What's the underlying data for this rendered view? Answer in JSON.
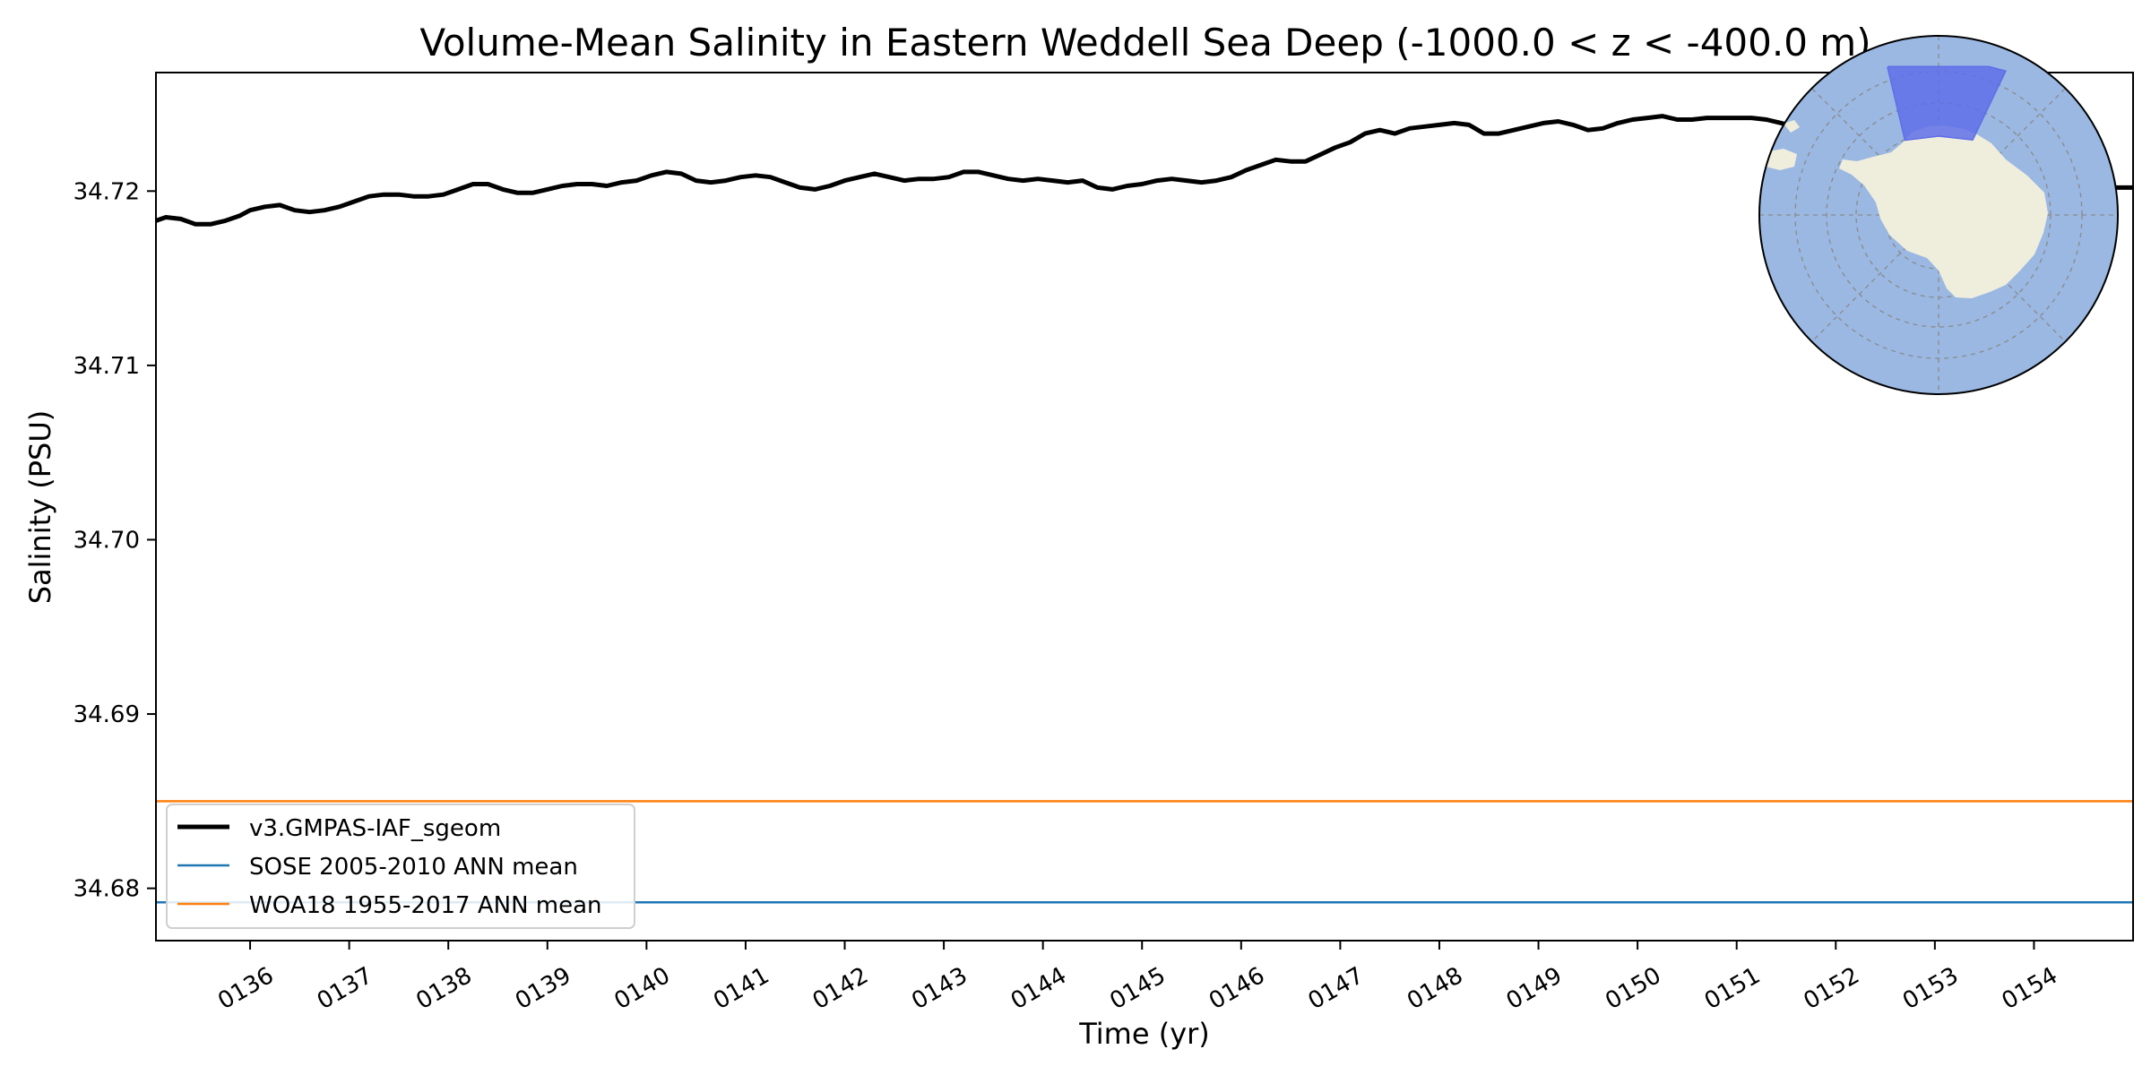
{
  "chart_data": {
    "type": "line",
    "title": "Volume-Mean Salinity in Eastern Weddell Sea Deep (-1000.0 < z < -400.0 m)",
    "xlabel": "Time (yr)",
    "ylabel": "Salinity (PSU)",
    "xlim": [
      135.05,
      155.0
    ],
    "ylim": [
      34.677,
      34.7268
    ],
    "x_ticks": [
      "0136",
      "0137",
      "0138",
      "0139",
      "0140",
      "0141",
      "0142",
      "0143",
      "0144",
      "0145",
      "0146",
      "0147",
      "0148",
      "0149",
      "0150",
      "0151",
      "0152",
      "0153",
      "0154"
    ],
    "y_ticks": [
      "34.68",
      "34.69",
      "34.70",
      "34.71",
      "34.72"
    ],
    "grid": false,
    "legend_position": "lower-left",
    "series": [
      {
        "name": "v3.GMPAS-IAF_sgeom",
        "color": "#000000",
        "points": [
          [
            135.05,
            34.7183
          ],
          [
            135.15,
            34.7185
          ],
          [
            135.3,
            34.7184
          ],
          [
            135.45,
            34.7181
          ],
          [
            135.6,
            34.7181
          ],
          [
            135.75,
            34.7183
          ],
          [
            135.9,
            34.7186
          ],
          [
            136.0,
            34.7189
          ],
          [
            136.15,
            34.7191
          ],
          [
            136.3,
            34.7192
          ],
          [
            136.45,
            34.7189
          ],
          [
            136.6,
            34.7188
          ],
          [
            136.75,
            34.7189
          ],
          [
            136.9,
            34.7191
          ],
          [
            137.05,
            34.7194
          ],
          [
            137.2,
            34.7197
          ],
          [
            137.35,
            34.7198
          ],
          [
            137.5,
            34.7198
          ],
          [
            137.65,
            34.7197
          ],
          [
            137.8,
            34.7197
          ],
          [
            137.95,
            34.7198
          ],
          [
            138.1,
            34.7201
          ],
          [
            138.25,
            34.7204
          ],
          [
            138.4,
            34.7204
          ],
          [
            138.55,
            34.7201
          ],
          [
            138.7,
            34.7199
          ],
          [
            138.85,
            34.7199
          ],
          [
            139.0,
            34.7201
          ],
          [
            139.15,
            34.7203
          ],
          [
            139.3,
            34.7204
          ],
          [
            139.45,
            34.7204
          ],
          [
            139.6,
            34.7203
          ],
          [
            139.75,
            34.7205
          ],
          [
            139.9,
            34.7206
          ],
          [
            140.05,
            34.7209
          ],
          [
            140.2,
            34.7211
          ],
          [
            140.35,
            34.721
          ],
          [
            140.5,
            34.7206
          ],
          [
            140.65,
            34.7205
          ],
          [
            140.8,
            34.7206
          ],
          [
            140.95,
            34.7208
          ],
          [
            141.1,
            34.7209
          ],
          [
            141.25,
            34.7208
          ],
          [
            141.4,
            34.7205
          ],
          [
            141.55,
            34.7202
          ],
          [
            141.7,
            34.7201
          ],
          [
            141.85,
            34.7203
          ],
          [
            142.0,
            34.7206
          ],
          [
            142.15,
            34.7208
          ],
          [
            142.3,
            34.721
          ],
          [
            142.45,
            34.7208
          ],
          [
            142.6,
            34.7206
          ],
          [
            142.75,
            34.7207
          ],
          [
            142.9,
            34.7207
          ],
          [
            143.05,
            34.7208
          ],
          [
            143.2,
            34.7211
          ],
          [
            143.35,
            34.7211
          ],
          [
            143.5,
            34.7209
          ],
          [
            143.65,
            34.7207
          ],
          [
            143.8,
            34.7206
          ],
          [
            143.95,
            34.7207
          ],
          [
            144.1,
            34.7206
          ],
          [
            144.25,
            34.7205
          ],
          [
            144.4,
            34.7206
          ],
          [
            144.55,
            34.7202
          ],
          [
            144.7,
            34.7201
          ],
          [
            144.85,
            34.7203
          ],
          [
            145.0,
            34.7204
          ],
          [
            145.15,
            34.7206
          ],
          [
            145.3,
            34.7207
          ],
          [
            145.45,
            34.7206
          ],
          [
            145.6,
            34.7205
          ],
          [
            145.75,
            34.7206
          ],
          [
            145.9,
            34.7208
          ],
          [
            146.05,
            34.7212
          ],
          [
            146.2,
            34.7215
          ],
          [
            146.35,
            34.7218
          ],
          [
            146.5,
            34.7217
          ],
          [
            146.65,
            34.7217
          ],
          [
            146.8,
            34.7221
          ],
          [
            146.95,
            34.7225
          ],
          [
            147.1,
            34.7228
          ],
          [
            147.25,
            34.7233
          ],
          [
            147.4,
            34.7235
          ],
          [
            147.55,
            34.7233
          ],
          [
            147.7,
            34.7236
          ],
          [
            147.85,
            34.7237
          ],
          [
            148.0,
            34.7238
          ],
          [
            148.15,
            34.7239
          ],
          [
            148.3,
            34.7238
          ],
          [
            148.45,
            34.7233
          ],
          [
            148.6,
            34.7233
          ],
          [
            148.75,
            34.7235
          ],
          [
            148.9,
            34.7237
          ],
          [
            149.05,
            34.7239
          ],
          [
            149.2,
            34.724
          ],
          [
            149.35,
            34.7238
          ],
          [
            149.5,
            34.7235
          ],
          [
            149.65,
            34.7236
          ],
          [
            149.8,
            34.7239
          ],
          [
            149.95,
            34.7241
          ],
          [
            150.1,
            34.7242
          ],
          [
            150.25,
            34.7243
          ],
          [
            150.4,
            34.7241
          ],
          [
            150.55,
            34.7241
          ],
          [
            150.7,
            34.7242
          ],
          [
            150.85,
            34.7242
          ],
          [
            151.0,
            34.7242
          ],
          [
            151.15,
            34.7242
          ],
          [
            151.3,
            34.7241
          ],
          [
            151.45,
            34.7239
          ],
          [
            151.6,
            34.7236
          ],
          [
            151.75,
            34.7232
          ],
          [
            151.9,
            34.7228
          ],
          [
            152.05,
            34.7224
          ],
          [
            152.2,
            34.722
          ],
          [
            152.35,
            34.7217
          ],
          [
            152.5,
            34.7214
          ],
          [
            152.65,
            34.7212
          ],
          [
            152.8,
            34.721
          ],
          [
            152.95,
            34.7208
          ],
          [
            153.1,
            34.7206
          ],
          [
            153.25,
            34.7205
          ],
          [
            153.4,
            34.7204
          ],
          [
            153.55,
            34.7204
          ],
          [
            153.7,
            34.7203
          ],
          [
            153.85,
            34.7203
          ],
          [
            154.0,
            34.7203
          ],
          [
            154.15,
            34.7202
          ],
          [
            154.3,
            34.7202
          ],
          [
            154.45,
            34.7202
          ],
          [
            154.6,
            34.7203
          ],
          [
            154.75,
            34.7202
          ],
          [
            154.9,
            34.7202
          ],
          [
            155.0,
            34.7202
          ]
        ]
      },
      {
        "name": "SOSE 2005-2010 ANN mean",
        "color": "#1f77b4",
        "constant": 34.6792
      },
      {
        "name": "WOA18 1955-2017 ANN mean",
        "color": "#ff7f0e",
        "constant": 34.685
      }
    ]
  },
  "inset_map": {
    "ocean_color": "#9ab8e2",
    "land_color": "#efeedd",
    "region_color": "#5f6ee8"
  }
}
